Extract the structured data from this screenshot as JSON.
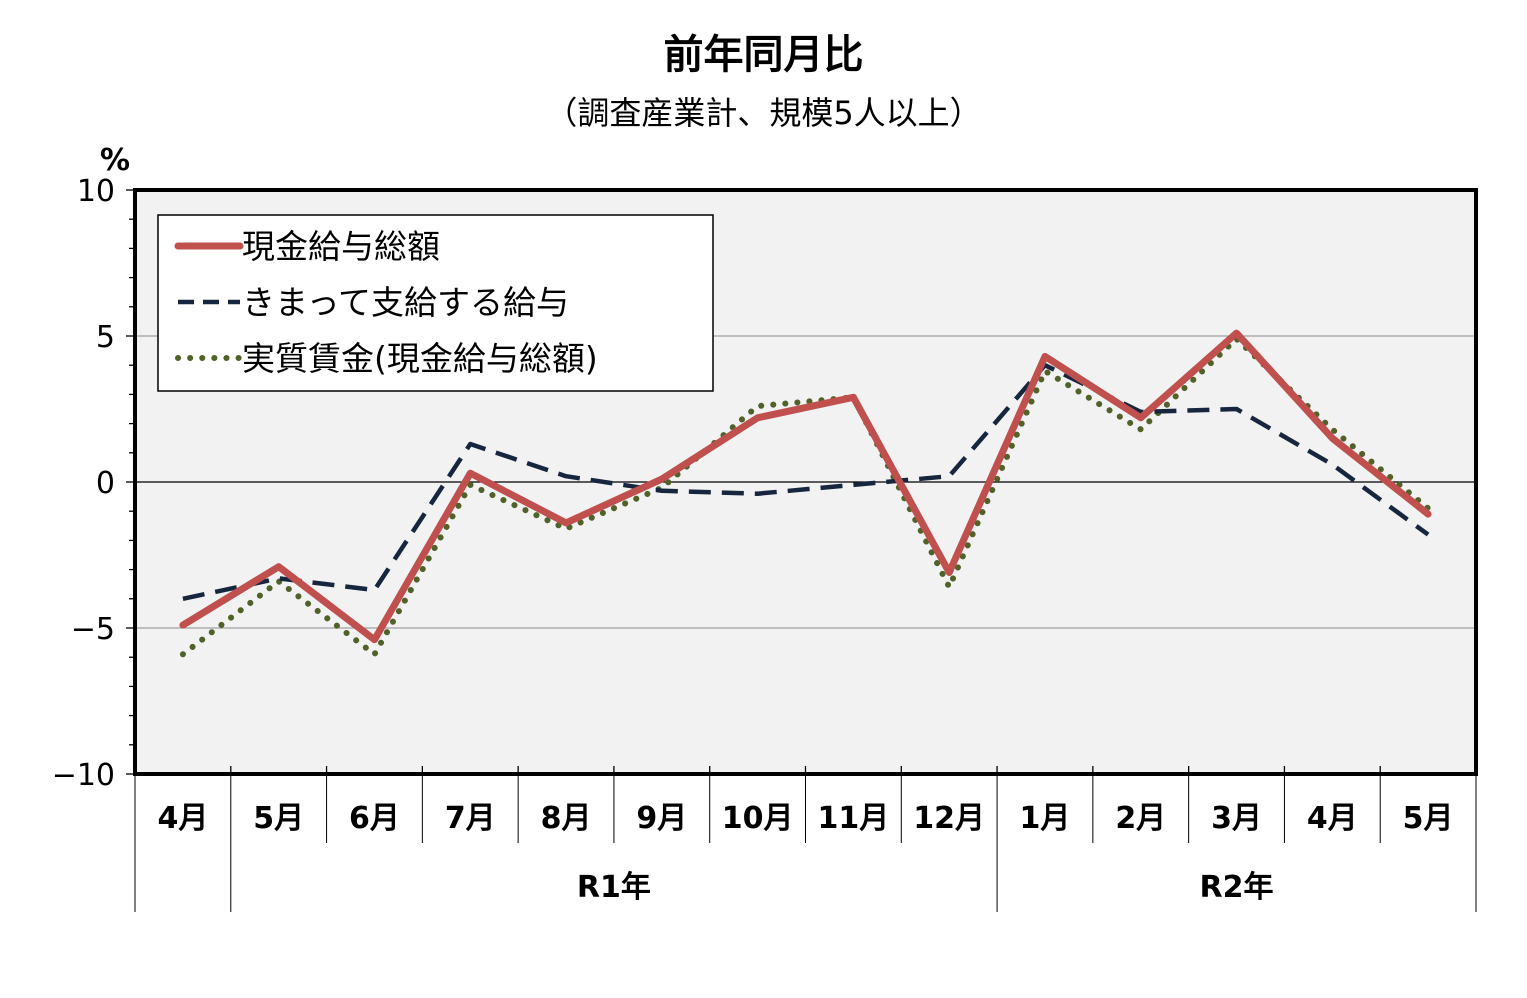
{
  "chart_data": {
    "type": "line",
    "title": "前年同月比",
    "subtitle": "（調査産業計、規模5人以上）",
    "ylabel": "%",
    "ylim": [
      -10,
      10
    ],
    "yticks": [
      10,
      5,
      0,
      -5,
      -10
    ],
    "ytick_labels": [
      "10",
      "5",
      "0",
      "−5",
      "−10"
    ],
    "categories": [
      "4月",
      "5月",
      "6月",
      "7月",
      "8月",
      "9月",
      "10月",
      "11月",
      "12月",
      "1月",
      "2月",
      "3月",
      "4月",
      "5月"
    ],
    "groups": [
      {
        "label": "",
        "start": 0,
        "end": 0
      },
      {
        "label": "R1年",
        "start": 1,
        "end": 8
      },
      {
        "label": "R2年",
        "start": 9,
        "end": 13
      }
    ],
    "grid": "horizontal",
    "legend_position": "top-left",
    "series": [
      {
        "name": "現金給与総額",
        "style": "solid",
        "color": "#c0504d",
        "values": [
          -4.9,
          -2.9,
          -5.4,
          0.3,
          -1.4,
          0.1,
          2.2,
          2.9,
          -3.1,
          4.3,
          2.2,
          5.1,
          1.5,
          -1.1
        ]
      },
      {
        "name": "きまって支給する給与",
        "style": "dashed",
        "color": "#17263f",
        "values": [
          -4.0,
          -3.3,
          -3.7,
          1.3,
          0.2,
          -0.3,
          -0.4,
          -0.1,
          0.2,
          4.0,
          2.4,
          2.5,
          0.6,
          -1.8
        ]
      },
      {
        "name": "実質賃金(現金給与総額)",
        "style": "dotted",
        "color": "#4f6228",
        "values": [
          -5.9,
          -3.4,
          -5.9,
          -0.1,
          -1.6,
          -0.2,
          2.6,
          2.9,
          -3.6,
          3.8,
          1.8,
          4.9,
          1.8,
          -0.9
        ]
      }
    ]
  }
}
